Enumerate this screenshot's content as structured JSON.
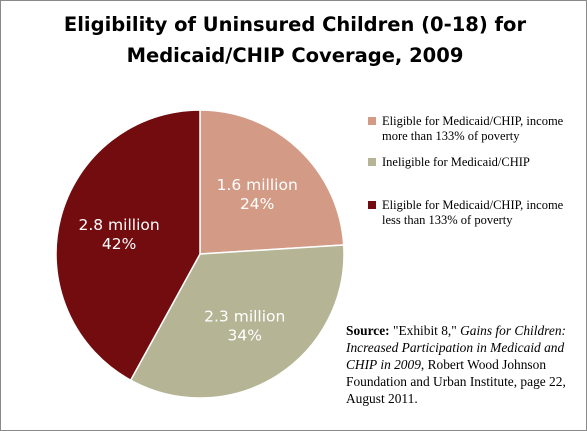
{
  "chart_data": {
    "type": "pie",
    "title": "Eligibility of Uninsured Children (0-18) for Medicaid/CHIP Coverage, 2009",
    "title_lines": [
      "Eligibility of Uninsured Children (0-18) for",
      "Medicaid/CHIP Coverage, 2009"
    ],
    "slices": [
      {
        "name": "Eligible  for Medicaid/CHIP, income more than 133% of poverty",
        "value": 1.6,
        "percent": 24,
        "value_label": "1.6 million",
        "percent_label": "24%",
        "color": "#d39b86"
      },
      {
        "name": "Ineligible for Medicaid/CHIP",
        "value": 2.3,
        "percent": 34,
        "value_label": "2.3 million",
        "percent_label": "34%",
        "color": "#b5b596"
      },
      {
        "name": "Eligible  for Medicaid/CHIP, income less than 133% of poverty",
        "value": 2.8,
        "percent": 42,
        "value_label": "2.8 million",
        "percent_label": "42%",
        "color": "#720c0f"
      }
    ],
    "legend": [
      {
        "lines": [
          "Eligible  for Medicaid/CHIP, income",
          "more than 133% of poverty"
        ],
        "color": "#d39b86"
      },
      {
        "lines": [
          "Ineligible for Medicaid/CHIP"
        ],
        "color": "#b5b596"
      },
      {
        "lines": [
          "Eligible  for Medicaid/CHIP, income",
          "less than 133% of poverty"
        ],
        "color": "#720c0f"
      }
    ],
    "legend_position": "right",
    "start_angle_deg": 0,
    "direction": "clockwise"
  },
  "source": {
    "label": "Source:",
    "quote_open": " \"Exhibit 8,\" ",
    "title_italic": "Gains for Children: Increased Participation in Medicaid and CHIP in 2009",
    "rest": ", Robert Wood Johnson Foundation and Urban Institute, page 22, August 2011."
  }
}
